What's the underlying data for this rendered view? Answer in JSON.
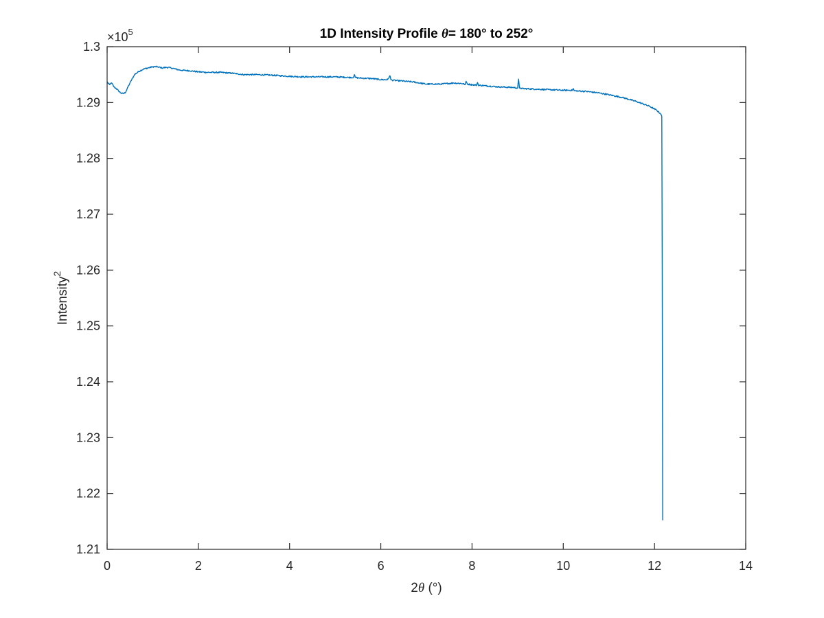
{
  "chart_data": {
    "type": "line",
    "title": "1D Intensity Profile θ= 180° to 252°",
    "title_parts": {
      "prefix": "1D Intensity Profile ",
      "symbol": "θ",
      "suffix": "= 180° to 252°"
    },
    "xlabel": "2θ (°)",
    "xlabel_parts": {
      "prefix": "2",
      "symbol": "θ",
      "suffix": " (°)"
    },
    "ylabel": "Intensity²",
    "ylabel_parts": {
      "base": "Intensity",
      "superscript": "2"
    },
    "y_exponent_label": {
      "base": "×10",
      "superscript": "5"
    },
    "xlim": [
      0,
      14
    ],
    "ylim": [
      1.21,
      1.3
    ],
    "x_ticks": [
      0,
      2,
      4,
      6,
      8,
      10,
      12,
      14
    ],
    "x_tick_labels": [
      "0",
      "2",
      "4",
      "6",
      "8",
      "10",
      "12",
      "14"
    ],
    "y_ticks": [
      1.21,
      1.22,
      1.23,
      1.24,
      1.25,
      1.26,
      1.27,
      1.28,
      1.29,
      1.3
    ],
    "y_tick_labels": [
      "1.21",
      "1.22",
      "1.23",
      "1.24",
      "1.25",
      "1.26",
      "1.27",
      "1.28",
      "1.29",
      "1.3"
    ],
    "grid": false,
    "legend": "none",
    "line_color": "#0072BD",
    "series": [
      {
        "x": [
          0.0,
          0.05,
          0.1,
          0.15,
          0.2,
          0.25,
          0.3,
          0.35,
          0.4,
          0.5,
          0.6,
          0.7,
          0.8,
          0.9,
          1.0,
          1.1,
          1.2,
          1.3,
          1.4,
          1.5,
          1.6,
          1.8,
          2.0,
          2.2,
          2.5,
          2.8,
          3.0,
          3.3,
          3.6,
          4.0,
          4.3,
          4.6,
          5.0,
          5.3,
          5.4,
          5.42,
          5.44,
          5.5,
          5.8,
          6.0,
          6.15,
          6.2,
          6.22,
          6.25,
          6.4,
          6.7,
          7.0,
          7.3,
          7.6,
          7.8,
          7.85,
          7.87,
          7.9,
          8.0,
          8.1,
          8.12,
          8.14,
          8.3,
          8.6,
          8.9,
          9.0,
          9.02,
          9.04,
          9.1,
          9.4,
          9.7,
          10.0,
          10.2,
          10.22,
          10.24,
          10.5,
          10.8,
          11.0,
          11.3,
          11.6,
          11.9,
          12.05,
          12.12,
          12.15,
          12.16,
          12.17,
          12.18
        ],
        "y": [
          1.2937,
          1.2932,
          1.2935,
          1.2928,
          1.2925,
          1.2921,
          1.2917,
          1.2916,
          1.2918,
          1.2935,
          1.295,
          1.2956,
          1.296,
          1.2962,
          1.2964,
          1.2964,
          1.2962,
          1.2963,
          1.2962,
          1.296,
          1.2958,
          1.2957,
          1.2955,
          1.2954,
          1.2954,
          1.2952,
          1.295,
          1.295,
          1.2949,
          1.2947,
          1.2946,
          1.2946,
          1.2946,
          1.2945,
          1.2945,
          1.295,
          1.2945,
          1.2944,
          1.2943,
          1.2941,
          1.2941,
          1.2948,
          1.2941,
          1.294,
          1.2939,
          1.2937,
          1.2933,
          1.2933,
          1.2935,
          1.2934,
          1.2932,
          1.2938,
          1.2933,
          1.2932,
          1.2931,
          1.2936,
          1.2931,
          1.293,
          1.2928,
          1.2927,
          1.2926,
          1.2942,
          1.2926,
          1.2925,
          1.2924,
          1.2923,
          1.2922,
          1.2922,
          1.2925,
          1.2921,
          1.292,
          1.2917,
          1.2914,
          1.2909,
          1.2902,
          1.2893,
          1.2886,
          1.2881,
          1.2878,
          1.2875,
          1.26,
          1.2152
        ]
      }
    ]
  }
}
